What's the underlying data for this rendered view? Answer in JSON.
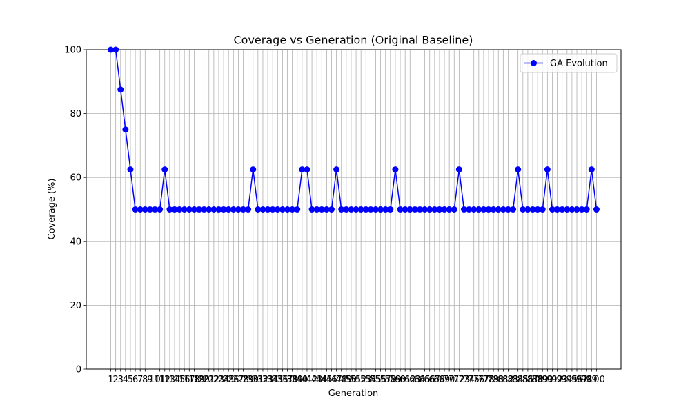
{
  "chart_data": {
    "type": "line",
    "title": "Coverage vs Generation (Original Baseline)",
    "xlabel": "Generation",
    "ylabel": "Coverage (%)",
    "xlim": [
      -4,
      105
    ],
    "ylim": [
      0,
      100
    ],
    "yticks": [
      0,
      20,
      40,
      60,
      80,
      100
    ],
    "grid": true,
    "legend_position": "top-right",
    "x": [
      1,
      2,
      3,
      4,
      5,
      6,
      7,
      8,
      9,
      10,
      11,
      12,
      13,
      14,
      15,
      16,
      17,
      18,
      19,
      20,
      21,
      22,
      23,
      24,
      25,
      26,
      27,
      28,
      29,
      30,
      31,
      32,
      33,
      34,
      35,
      36,
      37,
      38,
      39,
      40,
      41,
      42,
      43,
      44,
      45,
      46,
      47,
      48,
      49,
      50,
      51,
      52,
      53,
      54,
      55,
      56,
      57,
      58,
      59,
      60,
      61,
      62,
      63,
      64,
      65,
      66,
      67,
      68,
      69,
      70,
      71,
      72,
      73,
      74,
      75,
      76,
      77,
      78,
      79,
      80,
      81,
      82,
      83,
      84,
      85,
      86,
      87,
      88,
      89,
      90,
      91,
      92,
      93,
      94,
      95,
      96,
      97,
      98,
      99,
      100
    ],
    "series": [
      {
        "name": "GA Evolution",
        "color": "#0000ff",
        "marker": "circle",
        "values": [
          100,
          100,
          87.5,
          75,
          62.5,
          50,
          50,
          50,
          50,
          50,
          50,
          62.5,
          50,
          50,
          50,
          50,
          50,
          50,
          50,
          50,
          50,
          50,
          50,
          50,
          50,
          50,
          50,
          50,
          50,
          62.5,
          50,
          50,
          50,
          50,
          50,
          50,
          50,
          50,
          50,
          62.5,
          62.5,
          50,
          50,
          50,
          50,
          50,
          62.5,
          50,
          50,
          50,
          50,
          50,
          50,
          50,
          50,
          50,
          50,
          50,
          62.5,
          50,
          50,
          50,
          50,
          50,
          50,
          50,
          50,
          50,
          50,
          50,
          50,
          62.5,
          50,
          50,
          50,
          50,
          50,
          50,
          50,
          50,
          50,
          50,
          50,
          62.5,
          50,
          50,
          50,
          50,
          50,
          62.5,
          50,
          50,
          50,
          50,
          50,
          50,
          50,
          50,
          62.5,
          50
        ]
      }
    ]
  }
}
